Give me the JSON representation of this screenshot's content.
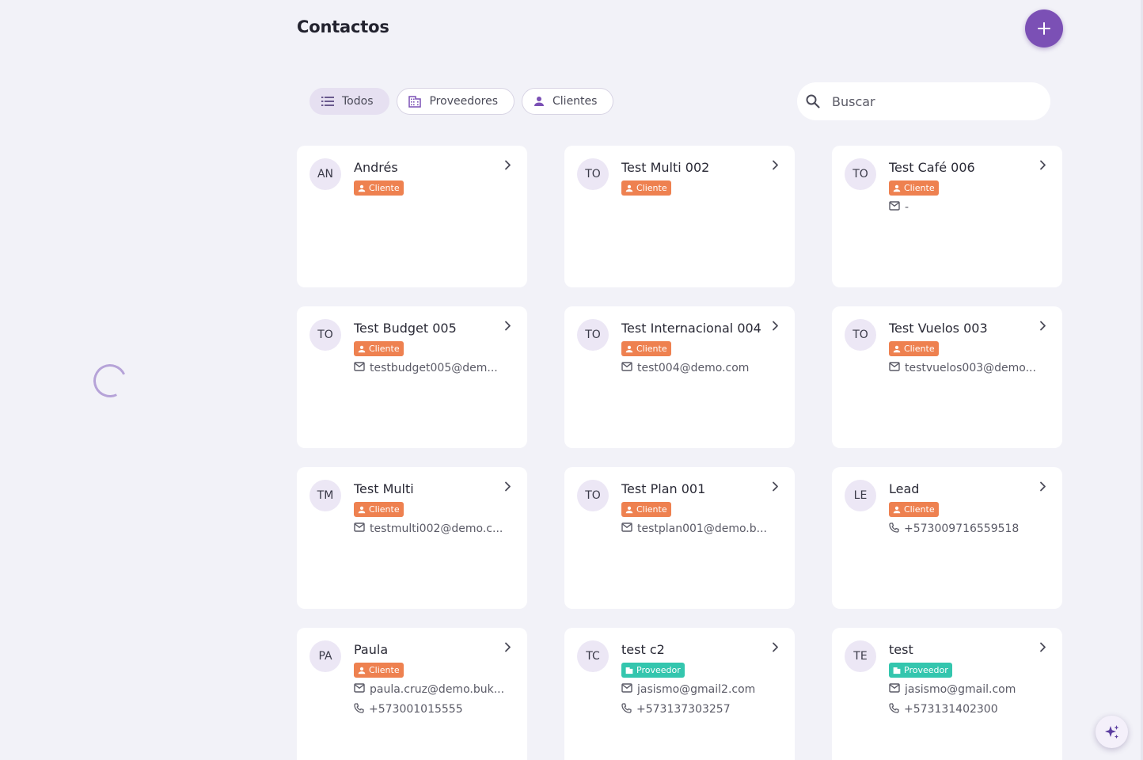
{
  "header": {
    "title": "Contactos"
  },
  "filters": [
    {
      "label": "Todos",
      "icon": "list-icon",
      "active": true
    },
    {
      "label": "Proveedores",
      "icon": "building-icon",
      "active": false
    },
    {
      "label": "Clientes",
      "icon": "person-icon",
      "active": false
    }
  ],
  "search": {
    "placeholder": "Buscar"
  },
  "colors": {
    "accent": "#7b50b5",
    "cliente": "#ee8150",
    "proveedor": "#34c6ae"
  },
  "contacts": [
    {
      "initials": "AN",
      "name": "Andrés",
      "type": "Cliente",
      "lines": []
    },
    {
      "initials": "TO",
      "name": "Test Multi 002",
      "type": "Cliente",
      "lines": []
    },
    {
      "initials": "TO",
      "name": "Test Café 006",
      "type": "Cliente",
      "lines": [
        {
          "icon": "mail-icon",
          "text": "-"
        }
      ]
    },
    {
      "initials": "TO",
      "name": "Test Budget 005",
      "type": "Cliente",
      "lines": [
        {
          "icon": "mail-icon",
          "text": "testbudget005@dem..."
        }
      ]
    },
    {
      "initials": "TO",
      "name": "Test Internacional 004",
      "type": "Cliente",
      "lines": [
        {
          "icon": "mail-icon",
          "text": "test004@demo.com"
        }
      ]
    },
    {
      "initials": "TO",
      "name": "Test Vuelos 003",
      "type": "Cliente",
      "lines": [
        {
          "icon": "mail-icon",
          "text": "testvuelos003@demo..."
        }
      ]
    },
    {
      "initials": "TM",
      "name": "Test Multi",
      "type": "Cliente",
      "lines": [
        {
          "icon": "mail-icon",
          "text": "testmulti002@demo.c..."
        }
      ]
    },
    {
      "initials": "TO",
      "name": "Test Plan 001",
      "type": "Cliente",
      "lines": [
        {
          "icon": "mail-icon",
          "text": "testplan001@demo.b..."
        }
      ]
    },
    {
      "initials": "LE",
      "name": "Lead",
      "type": "Cliente",
      "lines": [
        {
          "icon": "phone-icon",
          "text": "+573009716559518"
        }
      ]
    },
    {
      "initials": "PA",
      "name": "Paula",
      "type": "Cliente",
      "lines": [
        {
          "icon": "mail-icon",
          "text": "paula.cruz@demo.buk..."
        },
        {
          "icon": "phone-icon",
          "text": "+573001015555"
        }
      ]
    },
    {
      "initials": "TC",
      "name": "test c2",
      "type": "Proveedor",
      "lines": [
        {
          "icon": "mail-icon",
          "text": "jasismo@gmail2.com"
        },
        {
          "icon": "phone-icon",
          "text": "+573137303257"
        }
      ]
    },
    {
      "initials": "TE",
      "name": "test",
      "type": "Proveedor",
      "lines": [
        {
          "icon": "mail-icon",
          "text": "jasismo@gmail.com"
        },
        {
          "icon": "phone-icon",
          "text": "+573131402300"
        }
      ]
    }
  ]
}
